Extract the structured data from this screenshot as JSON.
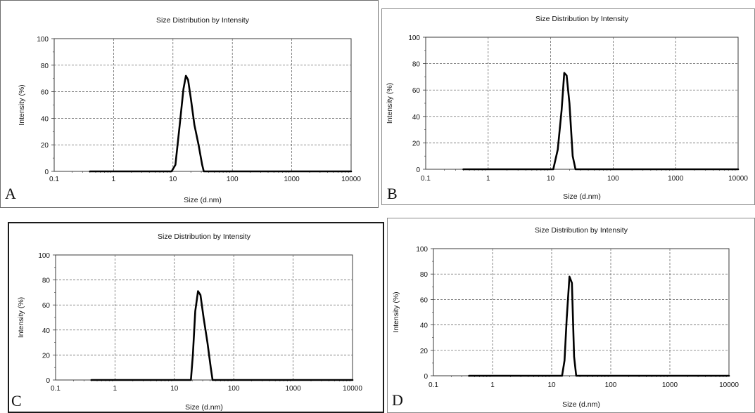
{
  "chart_data": [
    {
      "type": "line",
      "panel_label": "A",
      "title": "Size Distribution by Intensity",
      "xlabel": "Size (d.nm)",
      "ylabel": "Intensity (%)",
      "x_scale": "log",
      "xlim": [
        0.1,
        10000
      ],
      "ylim": [
        0,
        100
      ],
      "x_ticks": [
        "0.1",
        "1",
        "10",
        "100",
        "1000",
        "10000"
      ],
      "y_ticks": [
        "0",
        "20",
        "40",
        "60",
        "80",
        "100"
      ],
      "grid": true,
      "series": [
        {
          "x": [
            0.4,
            9.5,
            11,
            13,
            15,
            16.5,
            18,
            20,
            23,
            27,
            31,
            33,
            10000
          ],
          "y": [
            0,
            0,
            5,
            35,
            62,
            72,
            69,
            55,
            35,
            20,
            5,
            0,
            0
          ]
        }
      ]
    },
    {
      "type": "line",
      "panel_label": "B",
      "title": "Size Distribution by Intensity",
      "xlabel": "Size (d.nm)",
      "ylabel": "Intensity (%)",
      "x_scale": "log",
      "xlim": [
        0.1,
        10000
      ],
      "ylim": [
        0,
        100
      ],
      "x_ticks": [
        "0.1",
        "1",
        "10",
        "100",
        "1000",
        "10000"
      ],
      "y_ticks": [
        "0",
        "20",
        "40",
        "60",
        "80",
        "100"
      ],
      "grid": true,
      "series": [
        {
          "x": [
            0.4,
            11,
            13,
            15,
            16.5,
            18,
            20,
            22.5,
            25,
            10000
          ],
          "y": [
            0,
            0,
            15,
            45,
            73,
            71,
            50,
            10,
            0,
            0
          ]
        }
      ]
    },
    {
      "type": "line",
      "panel_label": "C",
      "title": "Size Distribution by Intensity",
      "xlabel": "Size (d.nm)",
      "ylabel": "Intensity (%)",
      "x_scale": "log",
      "xlim": [
        0.1,
        10000
      ],
      "ylim": [
        0,
        100
      ],
      "x_ticks": [
        "0.1",
        "1",
        "10",
        "100",
        "1000",
        "10000"
      ],
      "y_ticks": [
        "0",
        "20",
        "40",
        "60",
        "80",
        "100"
      ],
      "grid": true,
      "series": [
        {
          "x": [
            0.4,
            19,
            20.5,
            22.5,
            25,
            27.5,
            31,
            36,
            41,
            44,
            10000
          ],
          "y": [
            0,
            0,
            20,
            55,
            71,
            68,
            50,
            30,
            10,
            0,
            0
          ]
        }
      ]
    },
    {
      "type": "line",
      "panel_label": "D",
      "title": "Size Distribution by Intensity",
      "xlabel": "Size (d.nm)",
      "ylabel": "Intensity (%)",
      "x_scale": "log",
      "xlim": [
        0.1,
        10000
      ],
      "ylim": [
        0,
        100
      ],
      "x_ticks": [
        "0.1",
        "1",
        "10",
        "100",
        "1000",
        "10000"
      ],
      "y_ticks": [
        "0",
        "20",
        "40",
        "60",
        "80",
        "100"
      ],
      "grid": true,
      "series": [
        {
          "x": [
            0.4,
            15,
            16.5,
            18,
            20,
            22,
            24,
            26,
            10000
          ],
          "y": [
            0,
            0,
            12,
            45,
            78,
            73,
            15,
            0,
            0
          ]
        }
      ]
    }
  ]
}
